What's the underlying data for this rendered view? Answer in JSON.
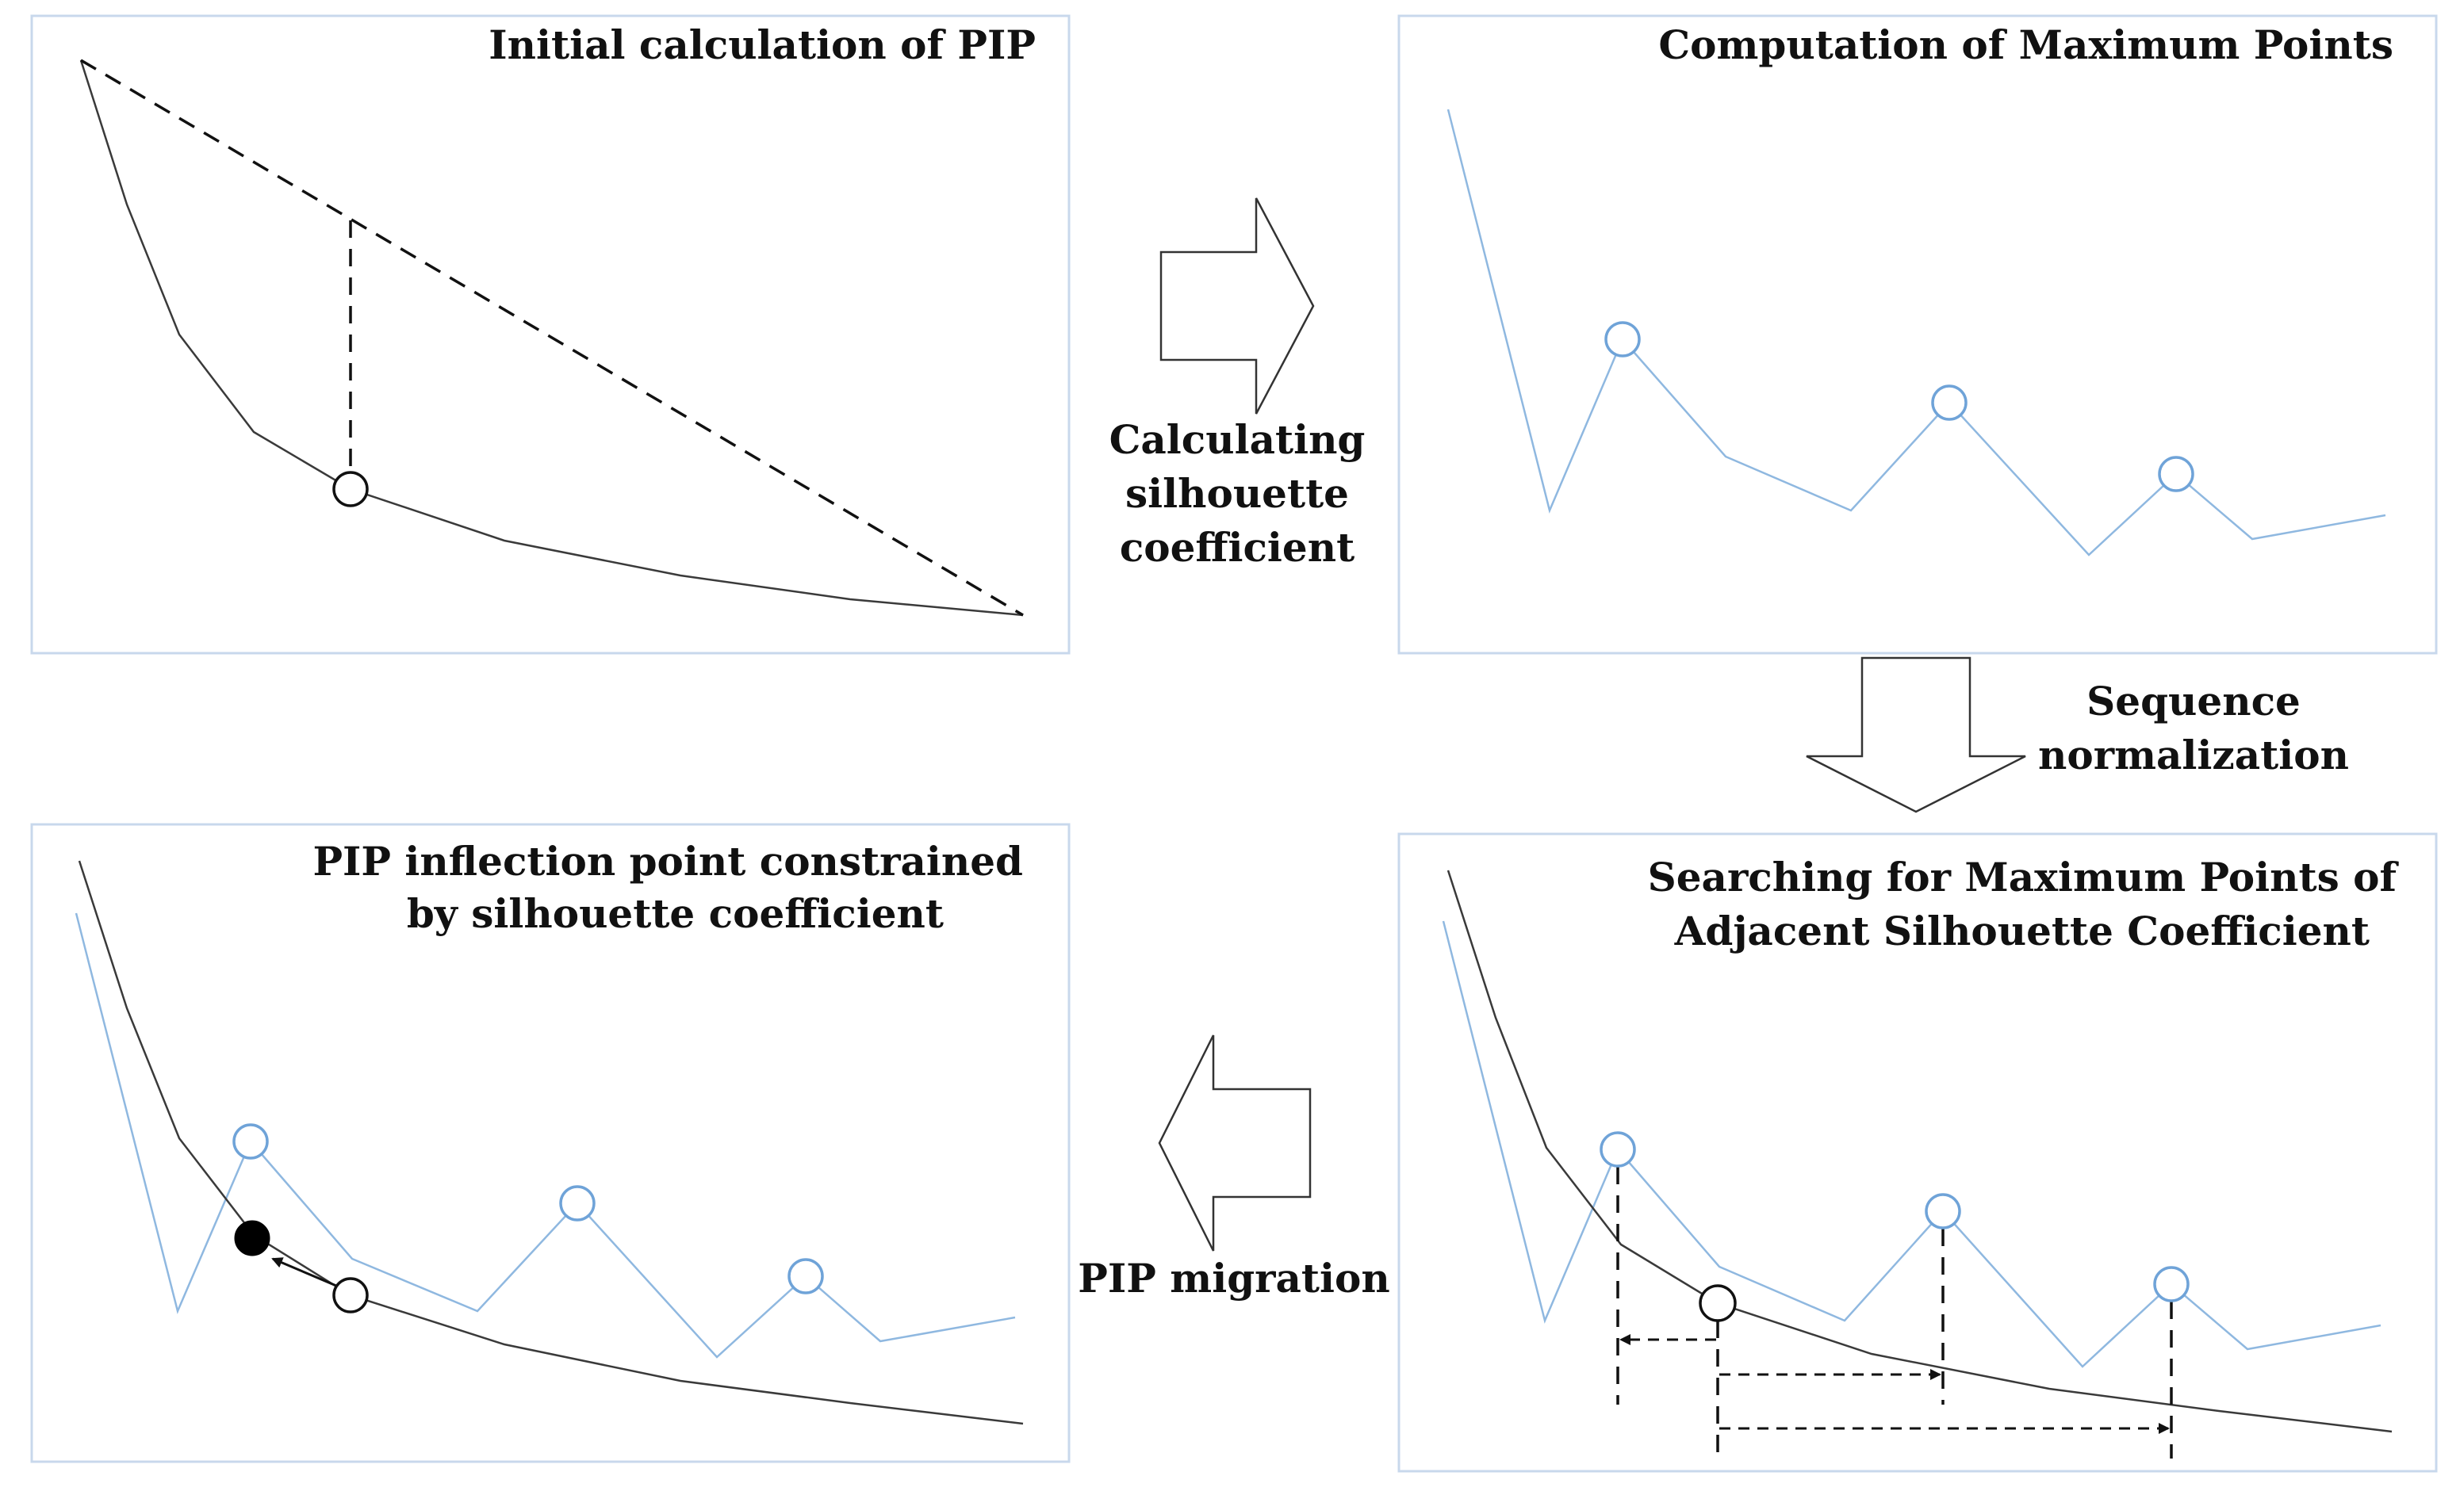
{
  "panels": {
    "top_left": {
      "title": "Initial calculation of PIP"
    },
    "top_right": {
      "title": "Computation of Maximum Points"
    },
    "bottom_right": {
      "title_line1": "Searching for Maximum Points of",
      "title_line2": "Adjacent Silhouette Coefficient"
    },
    "bottom_left": {
      "title_line1": "PIP inflection point constrained",
      "title_line2": "by silhouette coefficient"
    }
  },
  "arrows": {
    "right": {
      "label_line1": "Calculating",
      "label_line2": "silhouette",
      "label_line3": "coefficient"
    },
    "down": {
      "label_line1": "Sequence",
      "label_line2": "normalization"
    },
    "left": {
      "label": "PIP migration"
    }
  },
  "colors": {
    "pip_curve": "#3a3a3a",
    "silhouette_curve": "#8fb8e0",
    "panel_border": "#c8d8ec",
    "dashed": "#111111"
  }
}
